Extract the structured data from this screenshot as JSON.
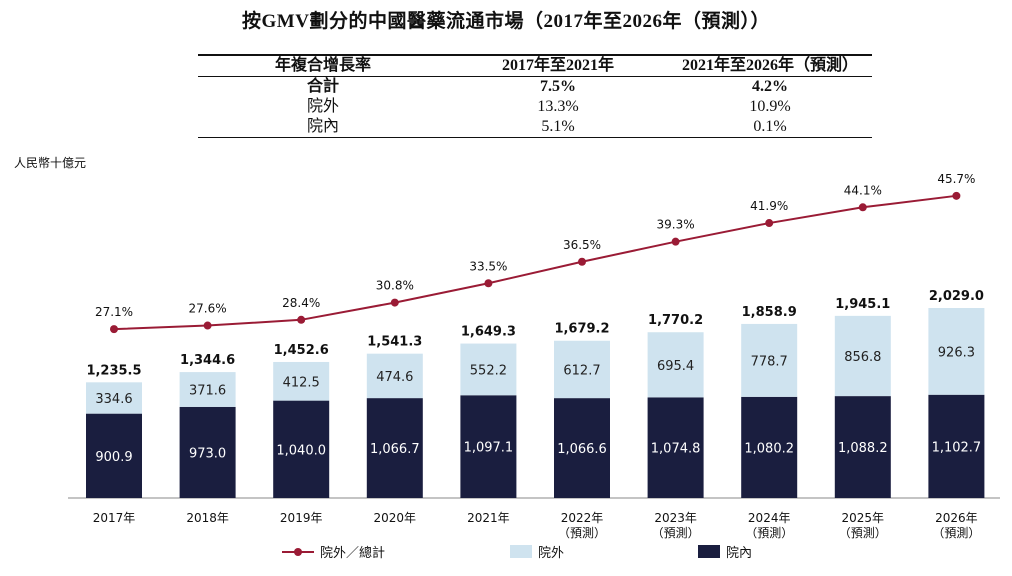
{
  "title": "按GMV劃分的中國醫藥流通市場（2017年至2026年（預測））",
  "cagr_table": {
    "headers": [
      "年複合增長率",
      "2017年至2021年",
      "2021年至2026年（預測）"
    ],
    "rows": [
      {
        "label": "合計",
        "v1": "7.5%",
        "v2": "4.2%"
      },
      {
        "label": "院外",
        "v1": "13.3%",
        "v2": "10.9%"
      },
      {
        "label": "院內",
        "v1": "5.1%",
        "v2": "0.1%"
      }
    ]
  },
  "unit_label": "人民幣十億元",
  "legend": {
    "line": "院外／總計",
    "outside": "院外",
    "inside": "院內"
  },
  "colors": {
    "inside": "#1a1e3f",
    "outside": "#cfe3ef",
    "line": "#9a1b35"
  },
  "chart_data": {
    "type": "bar",
    "stacked": true,
    "title": "按GMV劃分的中國醫藥流通市場（2017年至2026年（預測））",
    "ylabel": "人民幣十億元",
    "categories": [
      "2017年",
      "2018年",
      "2019年",
      "2020年",
      "2021年",
      "2022年",
      "2023年",
      "2024年",
      "2025年",
      "2026年"
    ],
    "category_sublabels": [
      "",
      "",
      "",
      "",
      "",
      "（預測）",
      "（預測）",
      "（預測）",
      "（預測）",
      "（預測）"
    ],
    "series": [
      {
        "name": "院內",
        "values": [
          900.9,
          973.0,
          1040.0,
          1066.7,
          1097.1,
          1066.6,
          1074.8,
          1080.2,
          1088.2,
          1102.7
        ],
        "labels": [
          "900.9",
          "973.0",
          "1,040.0",
          "1,066.7",
          "1,097.1",
          "1,066.6",
          "1,074.8",
          "1,080.2",
          "1,088.2",
          "1,102.7"
        ]
      },
      {
        "name": "院外",
        "values": [
          334.6,
          371.6,
          412.5,
          474.6,
          552.2,
          612.7,
          695.4,
          778.7,
          856.8,
          926.3
        ],
        "labels": [
          "334.6",
          "371.6",
          "412.5",
          "474.6",
          "552.2",
          "612.7",
          "695.4",
          "778.7",
          "856.8",
          "926.3"
        ]
      }
    ],
    "totals": [
      1235.5,
      1344.6,
      1452.6,
      1541.3,
      1649.3,
      1679.2,
      1770.2,
      1858.9,
      1945.1,
      2029.0
    ],
    "total_labels": [
      "1,235.5",
      "1,344.6",
      "1,452.6",
      "1,541.3",
      "1,649.3",
      "1,679.2",
      "1,770.2",
      "1,858.9",
      "1,945.1",
      "2,029.0"
    ],
    "line_series": {
      "name": "院外／總計",
      "values": [
        27.1,
        27.6,
        28.4,
        30.8,
        33.5,
        36.5,
        39.3,
        41.9,
        44.1,
        45.7
      ],
      "labels": [
        "27.1%",
        "27.6%",
        "28.4%",
        "30.8%",
        "33.5%",
        "36.5%",
        "39.3%",
        "41.9%",
        "44.1%",
        "45.7%"
      ]
    },
    "ylim": [
      0,
      2029.0
    ]
  }
}
